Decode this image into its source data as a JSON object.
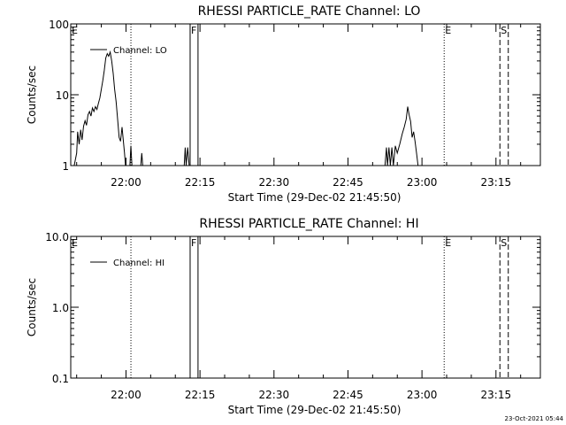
{
  "footer_timestamp": "23-Oct-2021 05:44",
  "chart_data": [
    {
      "type": "line",
      "title": "RHESSI PARTICLE_RATE Channel: LO",
      "xlabel": "Start Time (29-Dec-02 21:45:50)",
      "ylabel": "Counts/sec",
      "x_tick_labels": [
        "22:00",
        "22:15",
        "22:30",
        "22:45",
        "23:00",
        "23:15"
      ],
      "x_ticks_min": [
        0,
        15,
        30,
        45,
        60,
        75
      ],
      "xlim_min": [
        -11.2,
        84.0
      ],
      "y_scale": "log",
      "ylim": [
        1,
        100
      ],
      "y_tick_labels": [
        "1",
        "10",
        "100"
      ],
      "y_ticks": [
        1,
        10,
        100
      ],
      "legend": {
        "position": "top-left",
        "entries": [
          "Channel: LO"
        ]
      },
      "markers": [
        {
          "label": "E",
          "x_min": -11.2,
          "style": "none"
        },
        {
          "label": "",
          "x_min": 1.0,
          "style": "dotted"
        },
        {
          "label": "F",
          "x_min": 13.0,
          "style": "solid"
        },
        {
          "label": "",
          "x_min": 14.6,
          "style": "solid"
        },
        {
          "label": "E",
          "x_min": 64.5,
          "style": "dotted"
        },
        {
          "label": "S",
          "x_min": 75.8,
          "style": "dashed"
        },
        {
          "label": "",
          "x_min": 77.5,
          "style": "dashed"
        }
      ],
      "series": [
        {
          "name": "Channel: LO",
          "points": [
            [
              -10.5,
              1
            ],
            [
              -10.0,
              1.5
            ],
            [
              -9.8,
              3
            ],
            [
              -9.5,
              2
            ],
            [
              -9.2,
              3.2
            ],
            [
              -8.9,
              2.3
            ],
            [
              -8.6,
              3.6
            ],
            [
              -8.3,
              4.3
            ],
            [
              -8.0,
              3.7
            ],
            [
              -7.7,
              5.2
            ],
            [
              -7.4,
              5.8
            ],
            [
              -7.1,
              5.0
            ],
            [
              -6.8,
              6.5
            ],
            [
              -6.5,
              5.8
            ],
            [
              -6.2,
              6.8
            ],
            [
              -5.9,
              6.2
            ],
            [
              -5.6,
              7.5
            ],
            [
              -5.3,
              9
            ],
            [
              -5.0,
              12
            ],
            [
              -4.7,
              16
            ],
            [
              -4.4,
              22
            ],
            [
              -4.1,
              33
            ],
            [
              -3.8,
              38
            ],
            [
              -3.5,
              35
            ],
            [
              -3.2,
              40
            ],
            [
              -2.9,
              30
            ],
            [
              -2.6,
              20
            ],
            [
              -2.3,
              12
            ],
            [
              -2.0,
              8
            ],
            [
              -1.7,
              4.5
            ],
            [
              -1.4,
              2.5
            ],
            [
              -1.1,
              2.2
            ],
            [
              -0.8,
              3.5
            ],
            [
              -0.6,
              2.5
            ],
            [
              -0.3,
              1.5
            ],
            [
              -0.1,
              1
            ],
            [
              0.8,
              1
            ],
            [
              1.0,
              1.9
            ],
            [
              1.2,
              1
            ],
            [
              3.0,
              1
            ],
            [
              3.2,
              1.5
            ],
            [
              3.4,
              1
            ],
            [
              11.8,
              1
            ],
            [
              12.0,
              1.8
            ],
            [
              12.2,
              1
            ],
            [
              12.5,
              1.8
            ],
            [
              12.8,
              1
            ],
            [
              52.5,
              1
            ],
            [
              52.8,
              1.8
            ],
            [
              53.0,
              1
            ],
            [
              53.3,
              1.8
            ],
            [
              53.6,
              1
            ],
            [
              53.9,
              1.8
            ],
            [
              54.2,
              1
            ],
            [
              54.6,
              1.9
            ],
            [
              55.0,
              1.5
            ],
            [
              55.5,
              2.0
            ],
            [
              56.0,
              2.8
            ],
            [
              56.4,
              3.5
            ],
            [
              56.8,
              4.5
            ],
            [
              57.1,
              6.8
            ],
            [
              57.4,
              5.2
            ],
            [
              57.7,
              4.2
            ],
            [
              58.0,
              2.5
            ],
            [
              58.3,
              3.0
            ],
            [
              58.6,
              2.2
            ],
            [
              58.9,
              1.5
            ],
            [
              59.2,
              1
            ]
          ]
        }
      ]
    },
    {
      "type": "line",
      "title": "RHESSI PARTICLE_RATE Channel: HI",
      "xlabel": "Start Time (29-Dec-02 21:45:50)",
      "ylabel": "Counts/sec",
      "x_tick_labels": [
        "22:00",
        "22:15",
        "22:30",
        "22:45",
        "23:00",
        "23:15"
      ],
      "x_ticks_min": [
        0,
        15,
        30,
        45,
        60,
        75
      ],
      "xlim_min": [
        -11.2,
        84.0
      ],
      "y_scale": "log",
      "ylim": [
        0.1,
        10
      ],
      "y_tick_labels": [
        "0.1",
        "1.0",
        "10.0"
      ],
      "y_ticks": [
        0.1,
        1,
        10
      ],
      "legend": {
        "position": "top-left",
        "entries": [
          "Channel: HI"
        ]
      },
      "markers": [
        {
          "label": "E",
          "x_min": -11.2,
          "style": "none"
        },
        {
          "label": "",
          "x_min": 1.0,
          "style": "dotted"
        },
        {
          "label": "F",
          "x_min": 13.0,
          "style": "solid"
        },
        {
          "label": "",
          "x_min": 14.6,
          "style": "solid"
        },
        {
          "label": "E",
          "x_min": 64.5,
          "style": "dotted"
        },
        {
          "label": "S",
          "x_min": 75.8,
          "style": "dashed"
        },
        {
          "label": "",
          "x_min": 77.5,
          "style": "dashed"
        }
      ],
      "series": [
        {
          "name": "Channel: HI",
          "points": []
        }
      ]
    }
  ]
}
